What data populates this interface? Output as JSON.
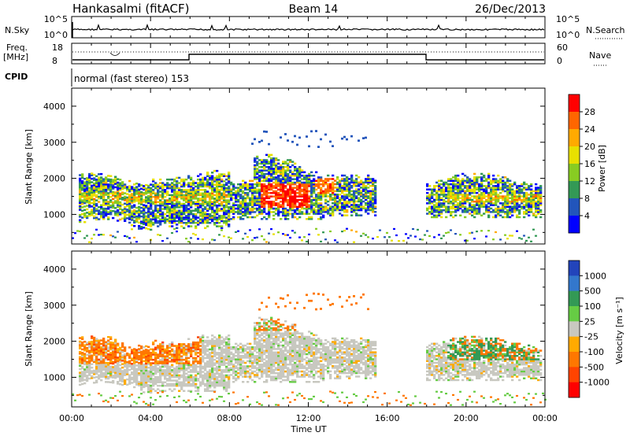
{
  "header": {
    "station": "Hankasalmi (fitACF)",
    "beam": "Beam 14",
    "date": "26/Dec/2013"
  },
  "strip": {
    "nsky_label": "N.Sky",
    "nsky_ticks": [
      "10^5",
      "10^0"
    ],
    "nsearch_label": "N.Search",
    "freq_label_1": "Freq.",
    "freq_label_2": "[MHz]",
    "freq_ticks": [
      "18",
      "8"
    ],
    "nave_ticks": [
      "60",
      "0"
    ],
    "nave_label": "Nave",
    "cpid_label": "CPID",
    "cpid_text": "normal (fast stereo) 153"
  },
  "chart_data": [
    {
      "type": "heatmap",
      "name": "power",
      "ylabel": "Slant Range [km]",
      "ylim": [
        180,
        4500
      ],
      "yticks": [
        "4000",
        "3000",
        "2000",
        "1000"
      ],
      "xlim": [
        0,
        24
      ],
      "colorbar": {
        "label": "Power [dB]",
        "ticks": [
          "28",
          "24",
          "20",
          "16",
          "12",
          "8",
          "4"
        ],
        "colors": [
          "#ff0000",
          "#ff6600",
          "#ffaa00",
          "#e8e000",
          "#88cc22",
          "#339955",
          "#2255bb",
          "#0000ff"
        ]
      }
    },
    {
      "type": "heatmap",
      "name": "velocity",
      "ylabel": "Slant Range [km]",
      "ylim": [
        180,
        4500
      ],
      "yticks": [
        "4000",
        "3000",
        "2000",
        "1000"
      ],
      "xlim": [
        0,
        24
      ],
      "colorbar": {
        "label": "Velocity [m s⁻¹]",
        "ticks": [
          "1000",
          "500",
          "100",
          "25",
          "-25",
          "-100",
          "-500",
          "-1000"
        ],
        "colors": [
          "#2244bb",
          "#3377cc",
          "#339955",
          "#66cc44",
          "#c8c8c0",
          "#ffaa00",
          "#ff7700",
          "#ff4400",
          "#ff0000"
        ]
      }
    }
  ],
  "xaxis": {
    "label": "Time UT",
    "ticks": [
      "00:00",
      "04:00",
      "08:00",
      "12:00",
      "16:00",
      "20:00",
      "00:00"
    ]
  }
}
